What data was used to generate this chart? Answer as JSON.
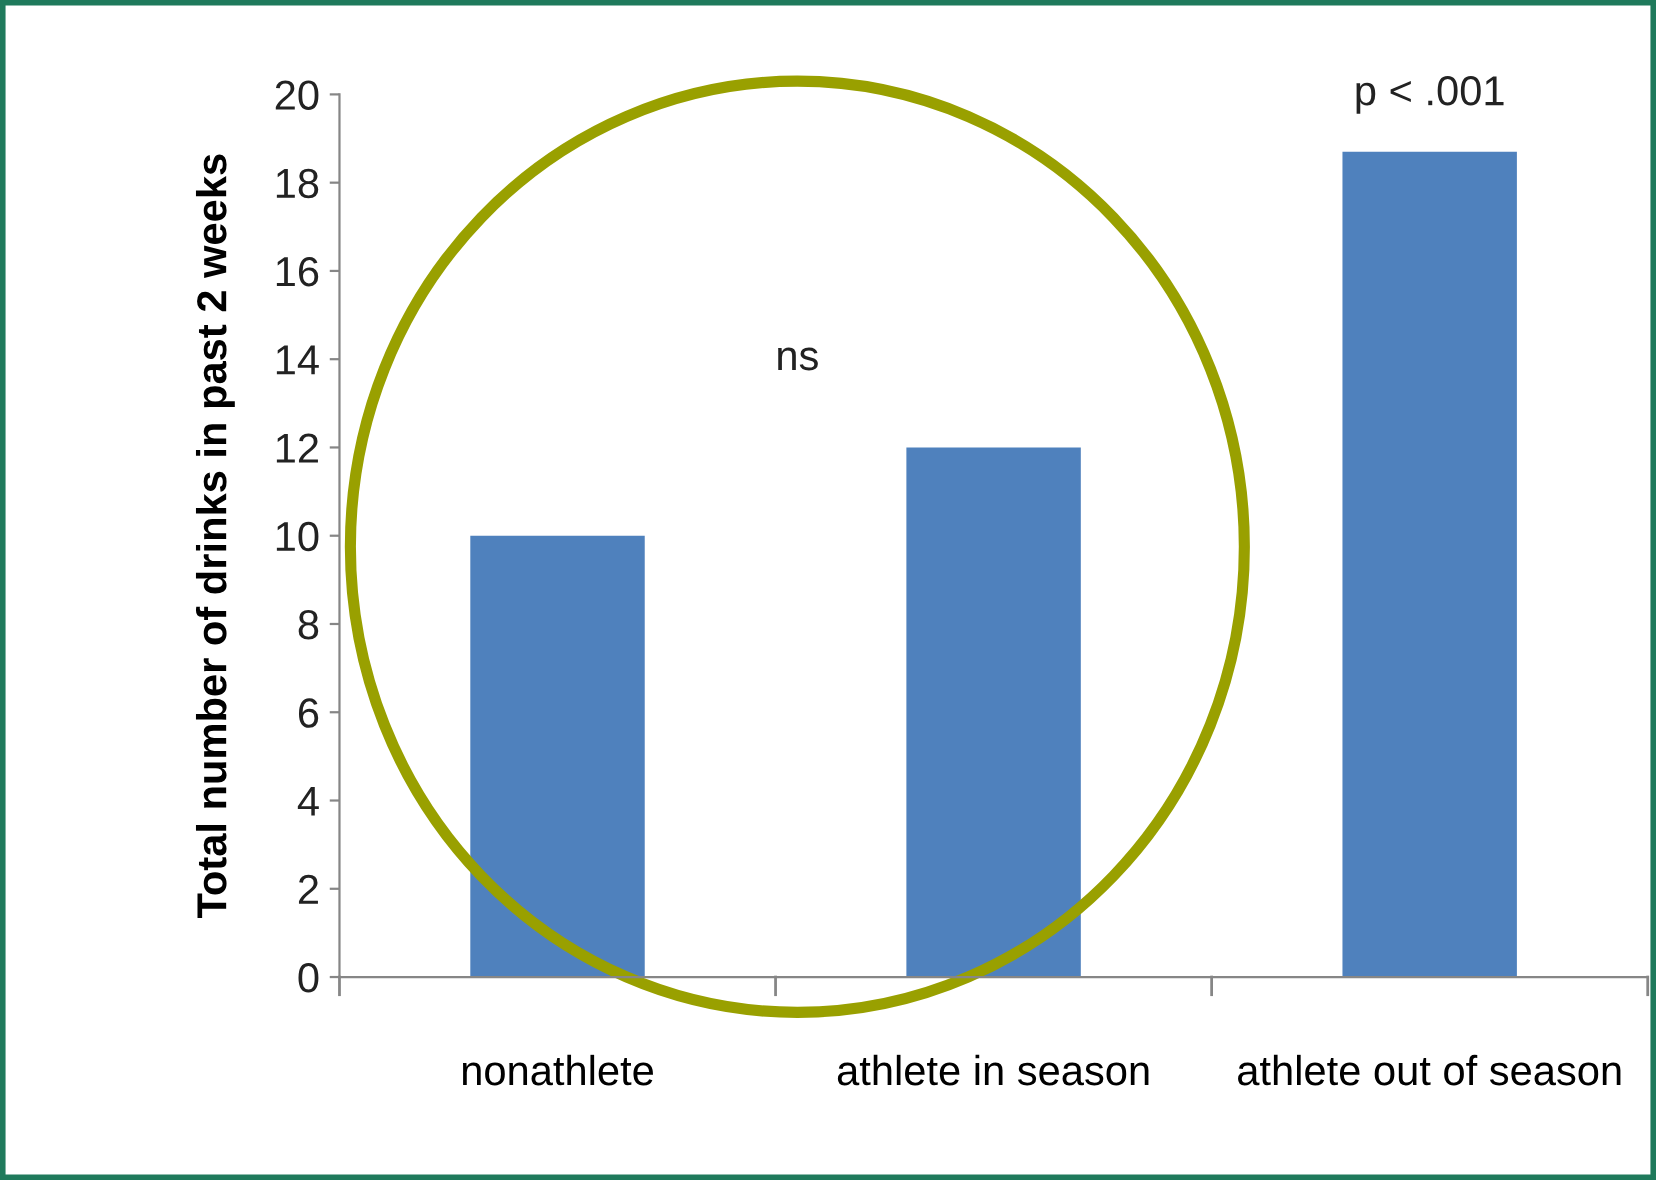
{
  "chart_data": {
    "type": "bar",
    "ylabel": "Total number of drinks in past 2 weeks",
    "categories": [
      "nonathlete",
      "athlete in season",
      "athlete out of season"
    ],
    "values": [
      10,
      12,
      18.7
    ],
    "color": "#4f81bd",
    "ylim": [
      0,
      20
    ],
    "yticks": [
      0,
      2,
      4,
      6,
      8,
      10,
      12,
      14,
      16,
      18,
      20
    ],
    "grid": false,
    "legend": false,
    "annotations": [
      "ns",
      "p < .001"
    ]
  }
}
